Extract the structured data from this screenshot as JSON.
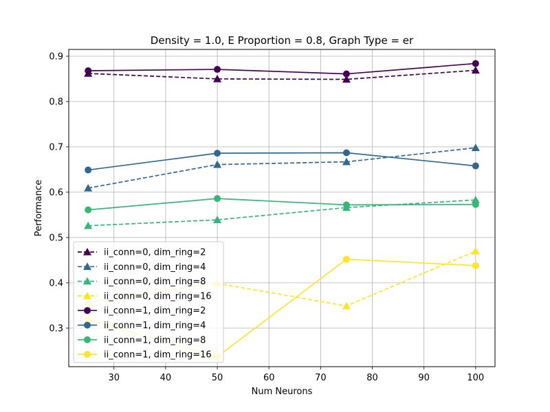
{
  "chart_data": {
    "type": "line",
    "title": "Density = 1.0, E Proportion = 0.8, Graph Type = er",
    "xlabel": "Num Neurons",
    "ylabel": "Performance",
    "xlim": [
      21.25,
      103.75
    ],
    "ylim": [
      0.215,
      0.915
    ],
    "xticks": [
      30,
      40,
      50,
      60,
      70,
      80,
      90,
      100
    ],
    "yticks": [
      0.3,
      0.4,
      0.5,
      0.6,
      0.7,
      0.8,
      0.9
    ],
    "grid": true,
    "legend_position": "lower-left",
    "x": [
      25,
      50,
      75,
      100
    ],
    "series": [
      {
        "name": "ii_conn=0, dim_ring=2",
        "values": [
          0.862,
          0.85,
          0.849,
          0.869
        ],
        "color": "#440154",
        "marker": "triangle",
        "linestyle": "dashed"
      },
      {
        "name": "ii_conn=0, dim_ring=4",
        "values": [
          0.609,
          0.661,
          0.667,
          0.698
        ],
        "color": "#31688e",
        "marker": "triangle",
        "linestyle": "dashed"
      },
      {
        "name": "ii_conn=0, dim_ring=8",
        "values": [
          0.526,
          0.539,
          0.566,
          0.583
        ],
        "color": "#35b779",
        "marker": "triangle",
        "linestyle": "dashed"
      },
      {
        "name": "ii_conn=0, dim_ring=16",
        "values": [
          0.357,
          0.399,
          0.349,
          0.47
        ],
        "color": "#fde725",
        "marker": "triangle",
        "linestyle": "dashed"
      },
      {
        "name": "ii_conn=1, dim_ring=2",
        "values": [
          0.868,
          0.871,
          0.861,
          0.884
        ],
        "color": "#440154",
        "marker": "circle",
        "linestyle": "solid"
      },
      {
        "name": "ii_conn=1, dim_ring=4",
        "values": [
          0.649,
          0.686,
          0.687,
          0.658
        ],
        "color": "#31688e",
        "marker": "circle",
        "linestyle": "solid"
      },
      {
        "name": "ii_conn=1, dim_ring=8",
        "values": [
          0.561,
          0.586,
          0.572,
          0.573
        ],
        "color": "#35b779",
        "marker": "circle",
        "linestyle": "solid"
      },
      {
        "name": "ii_conn=1, dim_ring=16",
        "values": [
          0.319,
          0.237,
          0.452,
          0.438
        ],
        "color": "#fde725",
        "marker": "circle",
        "linestyle": "solid"
      }
    ]
  }
}
